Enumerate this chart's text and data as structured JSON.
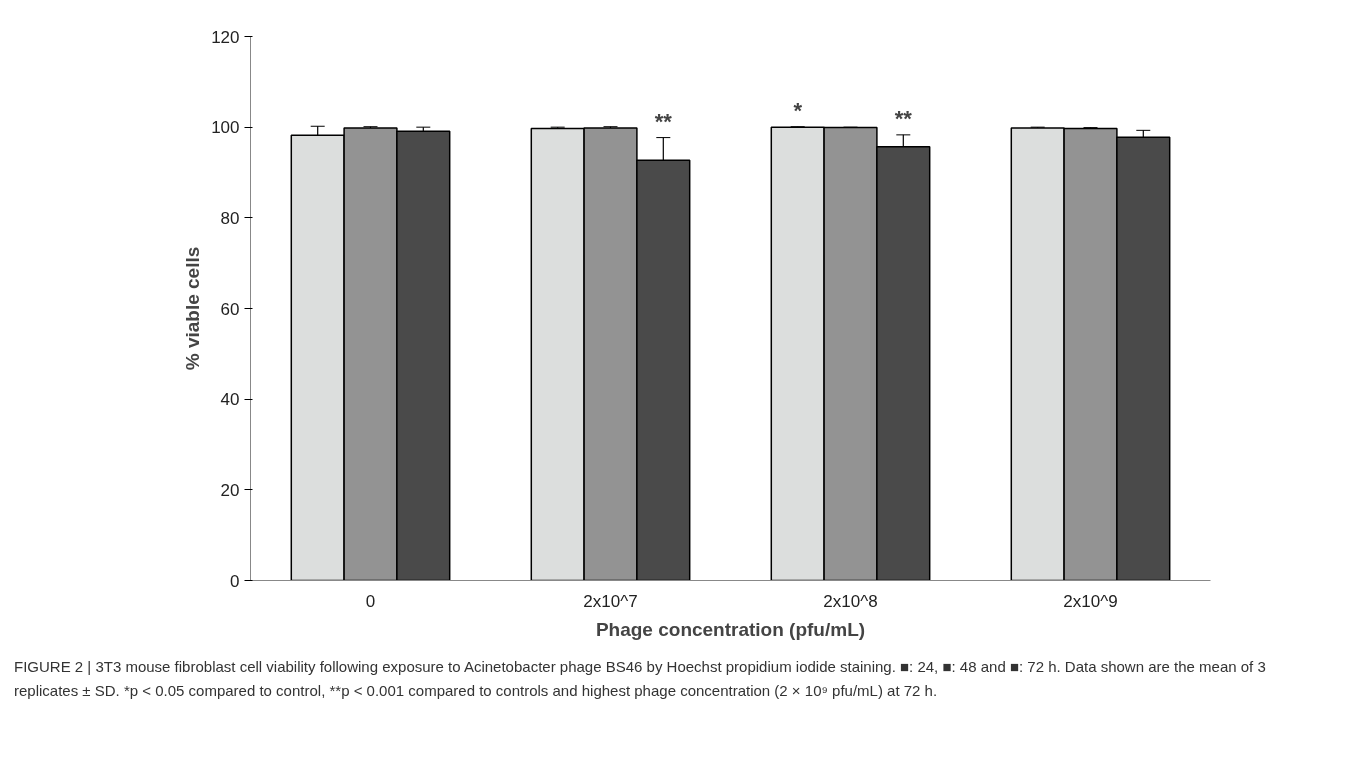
{
  "chart_data": {
    "type": "bar",
    "categories": [
      "0",
      "2x10^7",
      "2x10^8",
      "2x10^9"
    ],
    "series": [
      {
        "color": "#dcdedd",
        "values": [
          98.2,
          99.7,
          100,
          99.8
        ],
        "errors": [
          2,
          0.3,
          0.1,
          0.2
        ]
      },
      {
        "color": "#939393",
        "values": [
          99.8,
          99.8,
          99.9,
          99.7
        ],
        "errors": [
          0.3,
          0.3,
          0.1,
          0.2
        ]
      },
      {
        "color": "#4a4a4a",
        "values": [
          99.1,
          92.7,
          95.7,
          97.8
        ],
        "errors": [
          0.9,
          5,
          2.6,
          1.5
        ]
      }
    ],
    "ylim": [
      0,
      120
    ],
    "yticks": [
      0,
      20,
      40,
      60,
      80,
      100,
      120
    ],
    "ylabel": "% viable cells",
    "xlabel": "Phage concentration (pfu/mL)",
    "grid": false,
    "annotations": [
      "**",
      "*",
      "**",
      "FIGURE 2 | 3T3 mouse fibroblast cell viability following exposure to Acinetobacter phage BS46 by Hoechst propidium iodide staining. ■: 24, ■: 48 and ■: 72 h. Data shown are the mean of 3 replicates ± SD. *p < 0.05 compared to control, **p < 0.001 compared to controls and highest phage concentration (2 × 10⁹ pfu/mL) at 72 h."
    ]
  }
}
